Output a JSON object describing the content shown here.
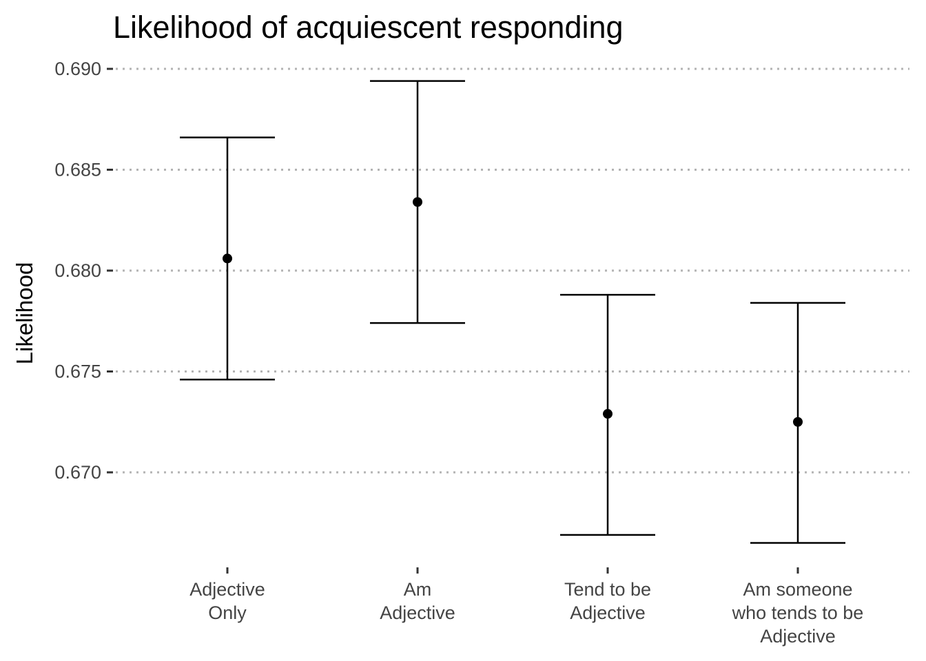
{
  "chart_data": {
    "type": "errorbar",
    "title": "Likelihood of acquiescent responding",
    "xlabel": "",
    "ylabel": "Likelihood",
    "categories": [
      [
        "Adjective",
        "Only"
      ],
      [
        "Am",
        "Adjective"
      ],
      [
        "Tend to be",
        "Adjective"
      ],
      [
        "Am someone",
        "who tends to be",
        "Adjective"
      ]
    ],
    "values": [
      0.6806,
      0.6834,
      0.6729,
      0.6725
    ],
    "lower": [
      0.6746,
      0.6774,
      0.6669,
      0.6665
    ],
    "upper": [
      0.6866,
      0.6894,
      0.6788,
      0.6784
    ],
    "ylim": [
      0.6654,
      0.6903
    ],
    "yticks": [
      "0.670",
      "0.675",
      "0.680",
      "0.685",
      "0.690"
    ],
    "grid": "horizontal major, dotted",
    "colors": {
      "marks": "#000000",
      "grid": "#b3b3b3",
      "tick_text": "#444444"
    }
  }
}
